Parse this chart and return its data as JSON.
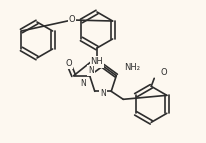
{
  "bg_color": "#fdf8f0",
  "line_color": "#2d2d2d",
  "line_width": 1.2,
  "font_size": 6.0,
  "figsize": [
    2.06,
    1.43
  ],
  "dpi": 100,
  "xlim": [
    0,
    206
  ],
  "ylim": [
    0,
    143
  ]
}
